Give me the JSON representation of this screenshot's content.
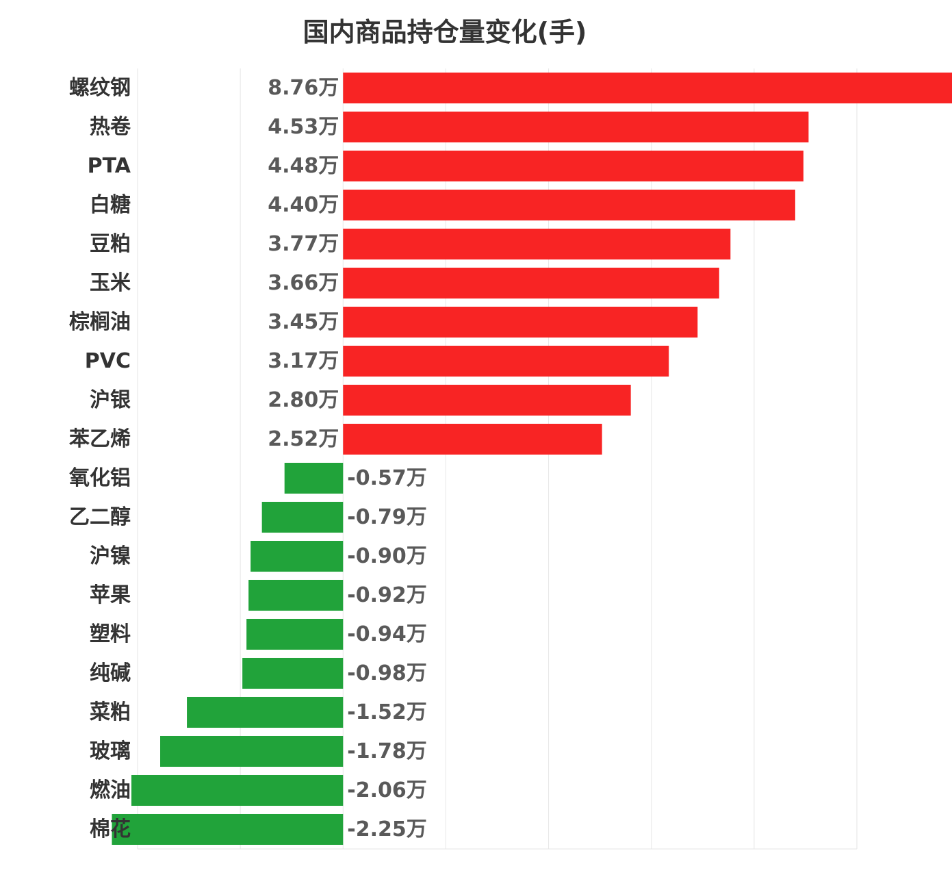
{
  "chart_data": {
    "type": "bar",
    "orientation": "horizontal",
    "title": "国内商品持仓量变化(手)",
    "xlim": [
      -2,
      5
    ],
    "unit_suffix": "万",
    "grid": true,
    "colors": {
      "positive": "#f82424",
      "negative": "#21a33a"
    },
    "categories": [
      "螺纹钢",
      "热卷",
      "PTA",
      "白糖",
      "豆粕",
      "玉米",
      "棕榈油",
      "PVC",
      "沪银",
      "苯乙烯",
      "氧化铝",
      "乙二醇",
      "沪镍",
      "苹果",
      "塑料",
      "纯碱",
      "菜粕",
      "玻璃",
      "燃油",
      "棉花"
    ],
    "values": [
      8.76,
      4.53,
      4.48,
      4.4,
      3.77,
      3.66,
      3.45,
      3.17,
      2.8,
      2.52,
      -0.57,
      -0.79,
      -0.9,
      -0.92,
      -0.94,
      -0.98,
      -1.52,
      -1.78,
      -2.06,
      -2.25
    ],
    "value_labels": [
      "8.76万",
      "4.53万",
      "4.48万",
      "4.40万",
      "3.77万",
      "3.66万",
      "3.45万",
      "3.17万",
      "2.80万",
      "2.52万",
      "-0.57万",
      "-0.79万",
      "-0.90万",
      "-0.92万",
      "-0.94万",
      "-0.98万",
      "-1.52万",
      "-1.78万",
      "-2.06万",
      "-2.25万"
    ]
  }
}
